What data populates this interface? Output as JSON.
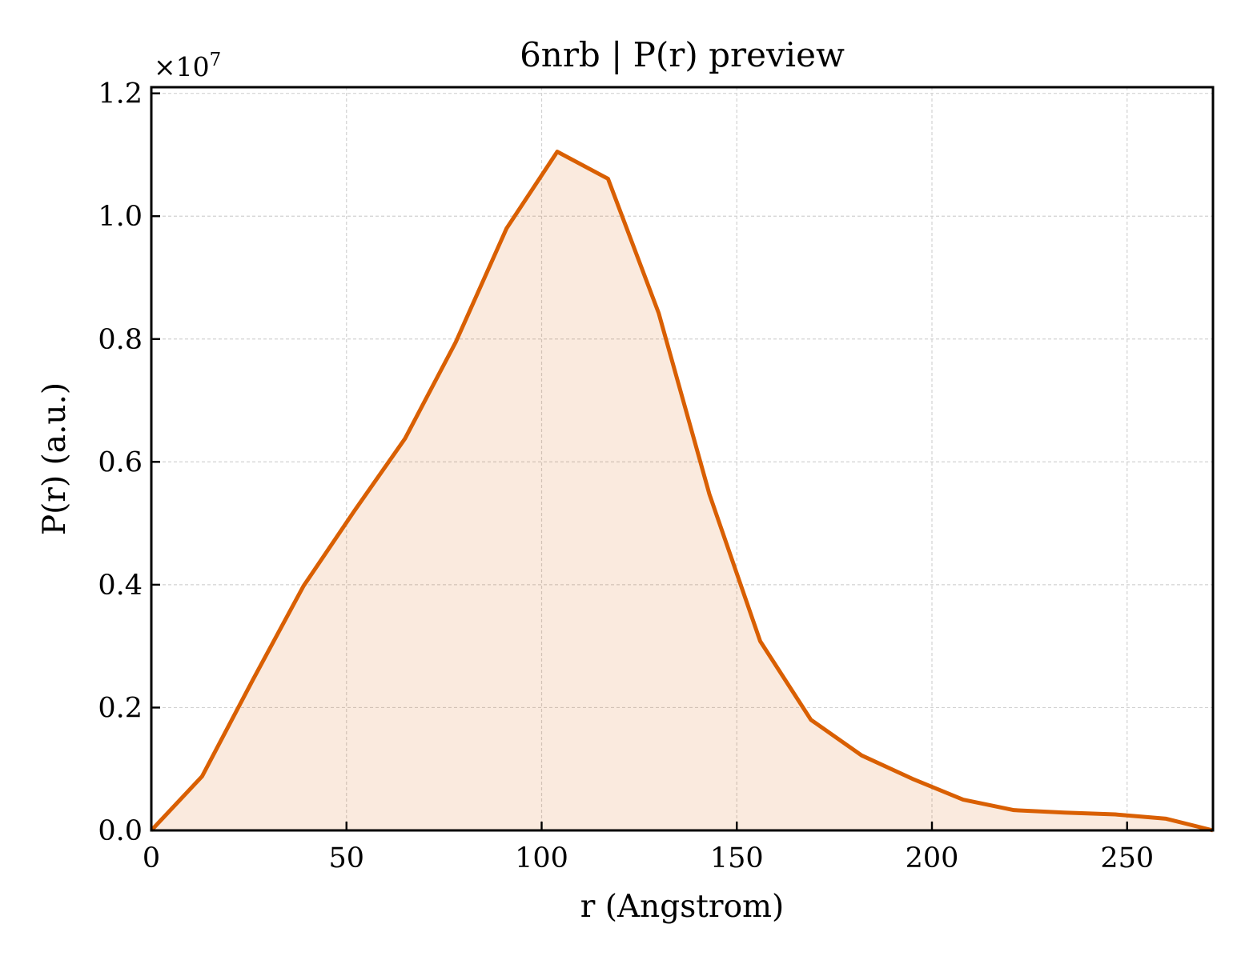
{
  "chart_data": {
    "type": "area",
    "title": "6nrb | P(r) preview",
    "xlabel": "r (Angstrom)",
    "ylabel": "P(r) (a.u.)",
    "y_offset_label": "×10",
    "y_offset_exponent": "7",
    "y_scale": 10000000,
    "xlim": [
      0,
      272
    ],
    "ylim": [
      0,
      12100000
    ],
    "x_ticks": [
      0,
      50,
      100,
      150,
      200,
      250
    ],
    "x_tick_labels": [
      "0",
      "50",
      "100",
      "150",
      "200",
      "250"
    ],
    "y_ticks": [
      0,
      2000000,
      4000000,
      6000000,
      8000000,
      10000000,
      12000000
    ],
    "y_tick_labels": [
      "0.0",
      "0.2",
      "0.4",
      "0.6",
      "0.8",
      "1.0",
      "1.2"
    ],
    "grid": true,
    "series": [
      {
        "color": "#d95f02",
        "fill_color": "#d95f02",
        "fill_opacity": 0.13,
        "x": [
          0,
          13,
          26,
          39,
          52,
          65,
          78,
          91,
          104,
          117,
          130,
          143,
          156,
          169,
          182,
          195,
          208,
          221,
          234,
          247,
          260,
          272
        ],
        "y": [
          0,
          880000,
          2450000,
          3980000,
          5200000,
          6380000,
          7950000,
          9800000,
          11050000,
          10610000,
          8420000,
          5470000,
          3080000,
          1800000,
          1220000,
          840000,
          500000,
          330000,
          290000,
          260000,
          190000,
          0
        ]
      }
    ]
  }
}
